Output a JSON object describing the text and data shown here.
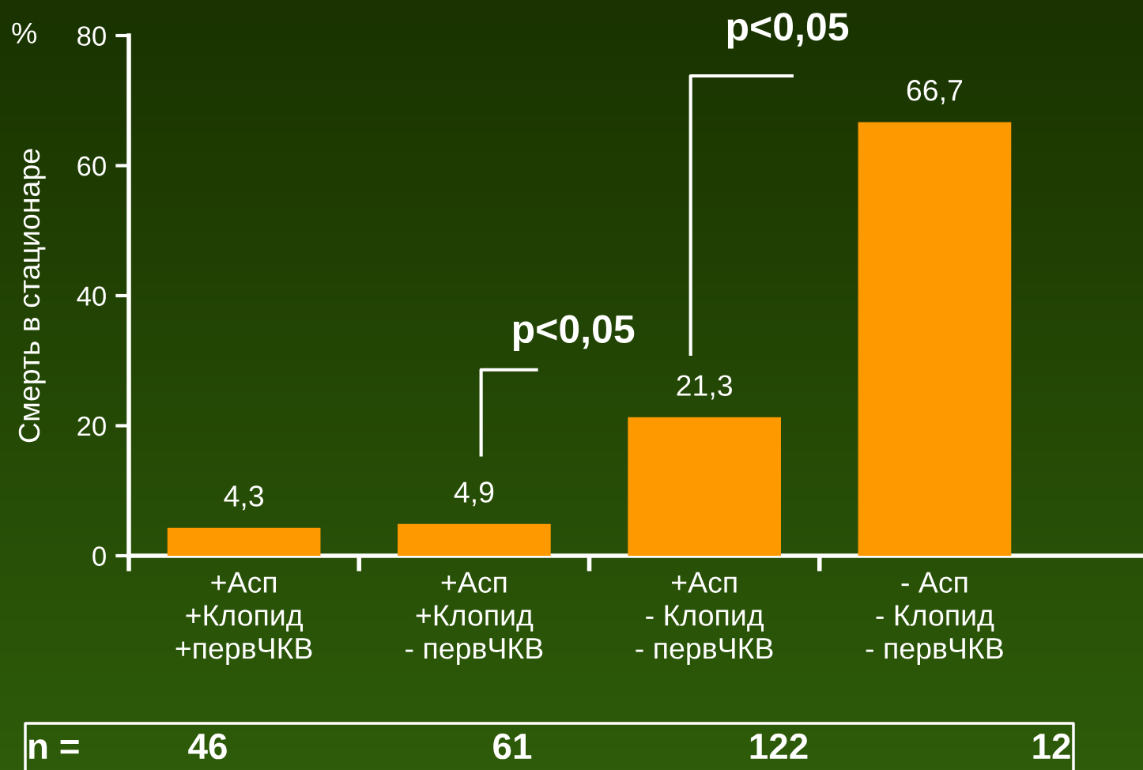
{
  "chart_data": {
    "type": "bar",
    "ylabel": "Смерть в стационаре",
    "categories": [
      "+Асп\n+Клопид\n+первЧКВ",
      "+Асп\n+Клопид\n- первЧКВ",
      "+Асп\n- Клопид\n- первЧКВ",
      "- Асп\n- Клопид\n- первЧКВ"
    ],
    "values": [
      4.3,
      4.9,
      21.3,
      66.7
    ],
    "value_labels": [
      "4,3",
      "4,9",
      "21,3",
      "66,7"
    ],
    "color": "#ff9900",
    "ylim": [
      0,
      80
    ],
    "yticks": [
      0,
      20,
      40,
      60,
      80
    ],
    "annotations": [
      "%",
      "p<0,05",
      "p<0,05",
      "n =",
      "46",
      "61",
      "122",
      "12"
    ],
    "grid": false,
    "legend": false
  }
}
